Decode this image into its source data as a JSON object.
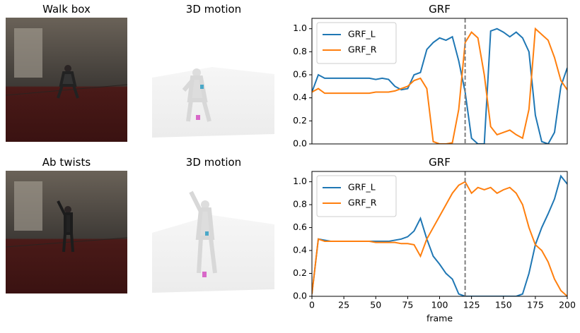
{
  "panels": [
    {
      "photo_title": "Walk box",
      "render_title": "3D motion"
    },
    {
      "photo_title": "Ab twists",
      "render_title": "3D motion"
    }
  ],
  "chart_data": [
    {
      "type": "line",
      "title": "GRF",
      "legend": "upper left",
      "x": [
        0,
        5,
        10,
        15,
        20,
        25,
        30,
        35,
        40,
        45,
        50,
        55,
        60,
        65,
        70,
        75,
        80,
        85,
        90,
        95,
        100,
        105,
        110,
        115,
        120,
        125,
        130,
        135,
        140,
        145,
        150,
        155,
        160,
        165,
        170,
        175,
        180,
        185,
        190,
        195,
        200
      ],
      "series": [
        {
          "name": "GRF_L",
          "color": "#1f77b4",
          "values": [
            0.45,
            0.6,
            0.57,
            0.57,
            0.57,
            0.57,
            0.57,
            0.57,
            0.57,
            0.57,
            0.56,
            0.57,
            0.56,
            0.5,
            0.47,
            0.48,
            0.6,
            0.62,
            0.82,
            0.88,
            0.92,
            0.9,
            0.93,
            0.72,
            0.45,
            0.05,
            0,
            0,
            0.98,
            1.0,
            0.97,
            0.93,
            0.97,
            0.92,
            0.8,
            0.25,
            0.02,
            0,
            0.1,
            0.5,
            0.66
          ]
        },
        {
          "name": "GRF_R",
          "color": "#ff7f0e",
          "values": [
            0.45,
            0.48,
            0.44,
            0.44,
            0.44,
            0.44,
            0.44,
            0.44,
            0.44,
            0.44,
            0.45,
            0.45,
            0.45,
            0.46,
            0.48,
            0.5,
            0.55,
            0.57,
            0.48,
            0.02,
            0,
            0,
            0.01,
            0.3,
            0.88,
            0.97,
            0.92,
            0.6,
            0.15,
            0.08,
            0.1,
            0.12,
            0.08,
            0.05,
            0.3,
            1.0,
            0.95,
            0.9,
            0.75,
            0.55,
            0.47
          ]
        }
      ],
      "xlim": [
        0,
        200
      ],
      "ylim": [
        0,
        1.09
      ],
      "yticks": [
        {
          "value": 0,
          "label": "0.0"
        },
        0.2,
        0.4,
        0.6,
        0.8,
        {
          "value": 1,
          "label": "1.0"
        }
      ],
      "vline": 120
    },
    {
      "type": "line",
      "title": "GRF",
      "legend": "upper left",
      "xlabel": "frame",
      "x": [
        0,
        5,
        10,
        15,
        20,
        25,
        30,
        35,
        40,
        45,
        50,
        55,
        60,
        65,
        70,
        75,
        80,
        85,
        90,
        95,
        100,
        105,
        110,
        115,
        120,
        125,
        130,
        135,
        140,
        145,
        150,
        155,
        160,
        165,
        170,
        175,
        180,
        185,
        190,
        195,
        200
      ],
      "series": [
        {
          "name": "GRF_L",
          "color": "#1f77b4",
          "values": [
            0.02,
            0.5,
            0.49,
            0.48,
            0.48,
            0.48,
            0.48,
            0.48,
            0.48,
            0.48,
            0.48,
            0.48,
            0.48,
            0.49,
            0.5,
            0.52,
            0.57,
            0.68,
            0.5,
            0.35,
            0.28,
            0.2,
            0.15,
            0.02,
            0,
            0,
            0,
            0,
            0,
            0,
            0,
            0,
            0,
            0.02,
            0.2,
            0.45,
            0.6,
            0.72,
            0.85,
            1.05,
            0.98
          ]
        },
        {
          "name": "GRF_R",
          "color": "#ff7f0e",
          "values": [
            0.02,
            0.5,
            0.48,
            0.48,
            0.48,
            0.48,
            0.48,
            0.48,
            0.48,
            0.48,
            0.47,
            0.47,
            0.47,
            0.47,
            0.46,
            0.46,
            0.45,
            0.35,
            0.5,
            0.6,
            0.7,
            0.8,
            0.9,
            0.97,
            1.0,
            0.9,
            0.95,
            0.93,
            0.95,
            0.9,
            0.93,
            0.95,
            0.9,
            0.8,
            0.6,
            0.45,
            0.4,
            0.3,
            0.15,
            0.05,
            0
          ]
        }
      ],
      "xlim": [
        0,
        200
      ],
      "ylim": [
        0,
        1.09
      ],
      "xticks": [
        0,
        25,
        50,
        75,
        100,
        125,
        150,
        175,
        200
      ],
      "yticks": [
        {
          "value": 0,
          "label": "0.0"
        },
        0.2,
        0.4,
        0.6,
        0.8,
        {
          "value": 1,
          "label": "1.0"
        }
      ],
      "vline": 120
    }
  ]
}
